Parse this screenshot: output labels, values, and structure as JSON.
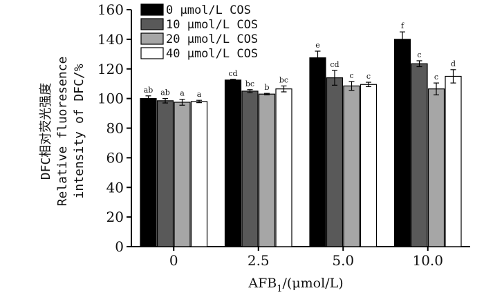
{
  "chart_data": {
    "type": "bar",
    "categories": [
      "0",
      "2.5",
      "5.0",
      "10.0"
    ],
    "series": [
      {
        "name": "0 μmol/L COS",
        "color": "#000000",
        "values": [
          100,
          112.5,
          127.5,
          140
        ],
        "errors": [
          1.8,
          0.5,
          4.5,
          5
        ],
        "letters": [
          "ab",
          "cd",
          "e",
          "f"
        ]
      },
      {
        "name": "10 μmol/L COS",
        "color": "#595959",
        "values": [
          98.5,
          105,
          114,
          123.5
        ],
        "errors": [
          1.5,
          1,
          5,
          2
        ],
        "letters": [
          "ab",
          "bc",
          "cd",
          "c"
        ]
      },
      {
        "name": "20 μmol/L COS",
        "color": "#a6a6a6",
        "values": [
          97.5,
          103,
          108.5,
          106.5
        ],
        "errors": [
          2,
          0.5,
          3,
          4
        ],
        "letters": [
          "a",
          "b",
          "c",
          "c"
        ]
      },
      {
        "name": "40 μmol/L COS",
        "color": "#ffffff",
        "values": [
          98,
          106.5,
          109.5,
          115
        ],
        "errors": [
          0.8,
          2,
          1.5,
          4.5
        ],
        "letters": [
          "a",
          "bc",
          "c",
          "d"
        ]
      }
    ],
    "ylim": [
      0,
      160
    ],
    "yticks": [
      0,
      20,
      40,
      60,
      80,
      100,
      120,
      140,
      160
    ],
    "ylabel_lines": [
      "DFC相对荧光强度",
      "Relative fluoresence",
      "intensity of DFC/%"
    ],
    "xlabel_main": "AFB",
    "xlabel_sub": "1",
    "xlabel_rest": "/(μmol/L)",
    "legend_position": "top-left"
  }
}
